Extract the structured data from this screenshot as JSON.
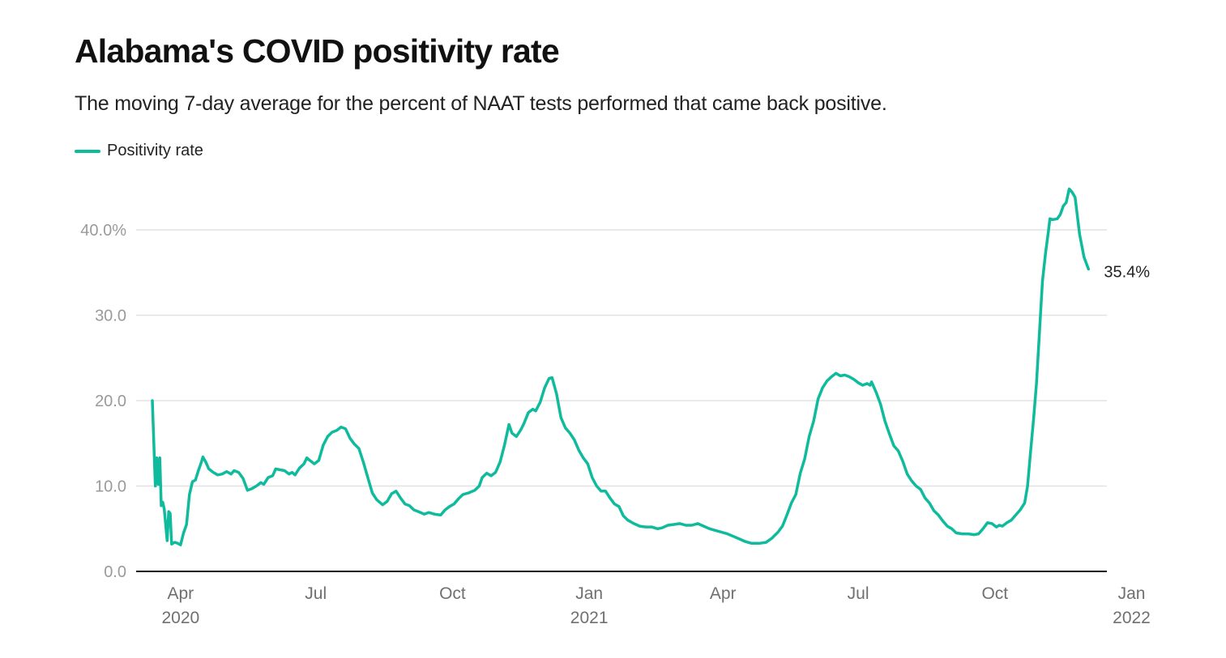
{
  "header": {
    "title": "Alabama's COVID positivity rate",
    "subtitle": "The moving 7-day average for the percent of NAAT tests performed that came back positive."
  },
  "chart_data": {
    "type": "line",
    "title": "Alabama's COVID positivity rate",
    "subtitle": "The moving 7-day average for the percent of NAAT tests performed that came back positive.",
    "xlabel": "",
    "ylabel": "",
    "ylim": [
      0,
      45
    ],
    "grid": true,
    "legend_position": "top-left",
    "colors": {
      "series": "#0fbb9c",
      "grid": "#e2e2e2",
      "axis": "#111111"
    },
    "y_ticks": [
      {
        "value": 0,
        "label": "0.0"
      },
      {
        "value": 10,
        "label": "10.0"
      },
      {
        "value": 20,
        "label": "20.0"
      },
      {
        "value": 30,
        "label": "30.0"
      },
      {
        "value": 40,
        "label": "40.0%"
      }
    ],
    "x_range": [
      "2020-03-13",
      "2022-02-08"
    ],
    "x_ticks": [
      {
        "date": "2020-04-01",
        "label": "Apr",
        "sublabel": "2020"
      },
      {
        "date": "2020-07-01",
        "label": "Jul",
        "sublabel": ""
      },
      {
        "date": "2020-10-01",
        "label": "Oct",
        "sublabel": ""
      },
      {
        "date": "2021-01-01",
        "label": "Jan",
        "sublabel": "2021"
      },
      {
        "date": "2021-04-01",
        "label": "Apr",
        "sublabel": ""
      },
      {
        "date": "2021-07-01",
        "label": "Jul",
        "sublabel": ""
      },
      {
        "date": "2021-10-01",
        "label": "Oct",
        "sublabel": ""
      },
      {
        "date": "2022-01-01",
        "label": "Jan",
        "sublabel": "2022"
      }
    ],
    "end_label": "35.4%",
    "series": [
      {
        "name": "Positivity rate",
        "points": [
          [
            "2020-03-13",
            20.0
          ],
          [
            "2020-03-15",
            10.0
          ],
          [
            "2020-03-16",
            13.3
          ],
          [
            "2020-03-17",
            10.2
          ],
          [
            "2020-03-18",
            13.3
          ],
          [
            "2020-03-19",
            7.7
          ],
          [
            "2020-03-20",
            8.1
          ],
          [
            "2020-03-21",
            7.3
          ],
          [
            "2020-03-23",
            3.6
          ],
          [
            "2020-03-24",
            7.0
          ],
          [
            "2020-03-25",
            6.8
          ],
          [
            "2020-03-26",
            3.2
          ],
          [
            "2020-03-28",
            3.4
          ],
          [
            "2020-03-30",
            3.3
          ],
          [
            "2020-04-01",
            3.1
          ],
          [
            "2020-04-03",
            4.5
          ],
          [
            "2020-04-05",
            5.5
          ],
          [
            "2020-04-07",
            9.0
          ],
          [
            "2020-04-09",
            10.5
          ],
          [
            "2020-04-11",
            10.7
          ],
          [
            "2020-04-13",
            11.8
          ],
          [
            "2020-04-15",
            12.8
          ],
          [
            "2020-04-16",
            13.4
          ],
          [
            "2020-04-18",
            12.8
          ],
          [
            "2020-04-20",
            12.0
          ],
          [
            "2020-04-23",
            11.6
          ],
          [
            "2020-04-26",
            11.3
          ],
          [
            "2020-04-29",
            11.4
          ],
          [
            "2020-05-02",
            11.7
          ],
          [
            "2020-05-05",
            11.4
          ],
          [
            "2020-05-07",
            11.8
          ],
          [
            "2020-05-10",
            11.6
          ],
          [
            "2020-05-13",
            10.9
          ],
          [
            "2020-05-16",
            9.5
          ],
          [
            "2020-05-19",
            9.7
          ],
          [
            "2020-05-22",
            10.0
          ],
          [
            "2020-05-25",
            10.4
          ],
          [
            "2020-05-27",
            10.2
          ],
          [
            "2020-05-30",
            11.0
          ],
          [
            "2020-06-02",
            11.2
          ],
          [
            "2020-06-04",
            12.0
          ],
          [
            "2020-06-07",
            11.9
          ],
          [
            "2020-06-10",
            11.8
          ],
          [
            "2020-06-13",
            11.4
          ],
          [
            "2020-06-15",
            11.6
          ],
          [
            "2020-06-17",
            11.3
          ],
          [
            "2020-06-20",
            12.1
          ],
          [
            "2020-06-23",
            12.6
          ],
          [
            "2020-06-25",
            13.3
          ],
          [
            "2020-06-27",
            13.0
          ],
          [
            "2020-06-30",
            12.6
          ],
          [
            "2020-07-03",
            13.0
          ],
          [
            "2020-07-06",
            14.8
          ],
          [
            "2020-07-09",
            15.8
          ],
          [
            "2020-07-12",
            16.3
          ],
          [
            "2020-07-15",
            16.5
          ],
          [
            "2020-07-18",
            16.9
          ],
          [
            "2020-07-21",
            16.7
          ],
          [
            "2020-07-24",
            15.6
          ],
          [
            "2020-07-27",
            14.9
          ],
          [
            "2020-07-30",
            14.4
          ],
          [
            "2020-08-02",
            12.8
          ],
          [
            "2020-08-05",
            11.0
          ],
          [
            "2020-08-08",
            9.2
          ],
          [
            "2020-08-11",
            8.4
          ],
          [
            "2020-08-15",
            7.8
          ],
          [
            "2020-08-18",
            8.2
          ],
          [
            "2020-08-21",
            9.1
          ],
          [
            "2020-08-24",
            9.4
          ],
          [
            "2020-08-27",
            8.6
          ],
          [
            "2020-08-30",
            7.9
          ],
          [
            "2020-09-02",
            7.7
          ],
          [
            "2020-09-05",
            7.2
          ],
          [
            "2020-09-08",
            7.0
          ],
          [
            "2020-09-12",
            6.7
          ],
          [
            "2020-09-15",
            6.9
          ],
          [
            "2020-09-19",
            6.7
          ],
          [
            "2020-09-23",
            6.6
          ],
          [
            "2020-09-26",
            7.2
          ],
          [
            "2020-09-29",
            7.6
          ],
          [
            "2020-10-02",
            7.9
          ],
          [
            "2020-10-05",
            8.5
          ],
          [
            "2020-10-08",
            9.0
          ],
          [
            "2020-10-12",
            9.2
          ],
          [
            "2020-10-16",
            9.5
          ],
          [
            "2020-10-19",
            10.0
          ],
          [
            "2020-10-21",
            11.0
          ],
          [
            "2020-10-24",
            11.5
          ],
          [
            "2020-10-27",
            11.2
          ],
          [
            "2020-10-30",
            11.6
          ],
          [
            "2020-11-02",
            12.8
          ],
          [
            "2020-11-05",
            14.8
          ],
          [
            "2020-11-08",
            17.2
          ],
          [
            "2020-11-10",
            16.2
          ],
          [
            "2020-11-13",
            15.8
          ],
          [
            "2020-11-16",
            16.6
          ],
          [
            "2020-11-18",
            17.3
          ],
          [
            "2020-11-21",
            18.6
          ],
          [
            "2020-11-24",
            19.0
          ],
          [
            "2020-11-26",
            18.8
          ],
          [
            "2020-11-29",
            19.8
          ],
          [
            "2020-12-02",
            21.5
          ],
          [
            "2020-12-05",
            22.6
          ],
          [
            "2020-12-07",
            22.7
          ],
          [
            "2020-12-10",
            20.8
          ],
          [
            "2020-12-13",
            18.0
          ],
          [
            "2020-12-16",
            16.8
          ],
          [
            "2020-12-19",
            16.2
          ],
          [
            "2020-12-22",
            15.4
          ],
          [
            "2020-12-25",
            14.2
          ],
          [
            "2020-12-28",
            13.3
          ],
          [
            "2020-12-31",
            12.6
          ],
          [
            "2021-01-03",
            11.0
          ],
          [
            "2021-01-06",
            10.0
          ],
          [
            "2021-01-09",
            9.4
          ],
          [
            "2021-01-12",
            9.4
          ],
          [
            "2021-01-15",
            8.6
          ],
          [
            "2021-01-18",
            7.9
          ],
          [
            "2021-01-21",
            7.6
          ],
          [
            "2021-01-24",
            6.5
          ],
          [
            "2021-01-27",
            6.0
          ],
          [
            "2021-01-31",
            5.6
          ],
          [
            "2021-02-04",
            5.3
          ],
          [
            "2021-02-08",
            5.2
          ],
          [
            "2021-02-12",
            5.2
          ],
          [
            "2021-02-16",
            5.0
          ],
          [
            "2021-02-19",
            5.1
          ],
          [
            "2021-02-23",
            5.4
          ],
          [
            "2021-02-27",
            5.5
          ],
          [
            "2021-03-03",
            5.6
          ],
          [
            "2021-03-07",
            5.4
          ],
          [
            "2021-03-11",
            5.4
          ],
          [
            "2021-03-15",
            5.6
          ],
          [
            "2021-03-19",
            5.3
          ],
          [
            "2021-03-23",
            5.0
          ],
          [
            "2021-03-27",
            4.8
          ],
          [
            "2021-03-31",
            4.6
          ],
          [
            "2021-04-04",
            4.4
          ],
          [
            "2021-04-08",
            4.1
          ],
          [
            "2021-04-12",
            3.8
          ],
          [
            "2021-04-16",
            3.5
          ],
          [
            "2021-04-20",
            3.3
          ],
          [
            "2021-04-23",
            3.3
          ],
          [
            "2021-04-26",
            3.3
          ],
          [
            "2021-04-30",
            3.4
          ],
          [
            "2021-05-04",
            3.9
          ],
          [
            "2021-05-08",
            4.6
          ],
          [
            "2021-05-11",
            5.3
          ],
          [
            "2021-05-14",
            6.6
          ],
          [
            "2021-05-17",
            8.0
          ],
          [
            "2021-05-20",
            9.0
          ],
          [
            "2021-05-23",
            11.5
          ],
          [
            "2021-05-26",
            13.2
          ],
          [
            "2021-05-29",
            15.8
          ],
          [
            "2021-06-01",
            17.6
          ],
          [
            "2021-06-04",
            20.2
          ],
          [
            "2021-06-07",
            21.5
          ],
          [
            "2021-06-10",
            22.3
          ],
          [
            "2021-06-13",
            22.8
          ],
          [
            "2021-06-16",
            23.2
          ],
          [
            "2021-06-19",
            22.9
          ],
          [
            "2021-06-22",
            23.0
          ],
          [
            "2021-06-25",
            22.8
          ],
          [
            "2021-06-28",
            22.5
          ],
          [
            "2021-07-01",
            22.1
          ],
          [
            "2021-07-04",
            21.8
          ],
          [
            "2021-07-07",
            22.0
          ],
          [
            "2021-07-09",
            21.8
          ],
          [
            "2021-07-10",
            22.2
          ],
          [
            "2021-07-13",
            21.0
          ],
          [
            "2021-07-16",
            19.6
          ],
          [
            "2021-07-19",
            17.6
          ],
          [
            "2021-07-22",
            16.1
          ],
          [
            "2021-07-25",
            14.7
          ],
          [
            "2021-07-28",
            14.1
          ],
          [
            "2021-07-31",
            12.9
          ],
          [
            "2021-08-03",
            11.4
          ],
          [
            "2021-08-06",
            10.6
          ],
          [
            "2021-08-09",
            10.0
          ],
          [
            "2021-08-12",
            9.6
          ],
          [
            "2021-08-15",
            8.6
          ],
          [
            "2021-08-18",
            8.0
          ],
          [
            "2021-08-21",
            7.1
          ],
          [
            "2021-08-24",
            6.6
          ],
          [
            "2021-08-27",
            5.9
          ],
          [
            "2021-08-30",
            5.3
          ],
          [
            "2021-09-02",
            5.0
          ],
          [
            "2021-09-05",
            4.5
          ],
          [
            "2021-09-09",
            4.4
          ],
          [
            "2021-09-13",
            4.4
          ],
          [
            "2021-09-17",
            4.3
          ],
          [
            "2021-09-20",
            4.4
          ],
          [
            "2021-09-23",
            5.0
          ],
          [
            "2021-09-26",
            5.7
          ],
          [
            "2021-09-29",
            5.6
          ],
          [
            "2021-10-02",
            5.2
          ],
          [
            "2021-10-04",
            5.4
          ],
          [
            "2021-10-06",
            5.3
          ],
          [
            "2021-10-09",
            5.7
          ],
          [
            "2021-10-12",
            6.0
          ],
          [
            "2021-10-15",
            6.6
          ],
          [
            "2021-10-18",
            7.2
          ],
          [
            "2021-10-21",
            8.0
          ],
          [
            "2021-10-23",
            10.0
          ],
          [
            "2021-10-25",
            14.0
          ],
          [
            "2021-10-27",
            17.8
          ],
          [
            "2021-10-29",
            22.0
          ],
          [
            "2021-10-31",
            28.0
          ],
          [
            "2021-11-02",
            34.0
          ],
          [
            "2021-11-04",
            37.2
          ],
          [
            "2021-11-06",
            39.8
          ],
          [
            "2021-11-07",
            41.3
          ],
          [
            "2021-11-09",
            41.2
          ],
          [
            "2021-11-12",
            41.3
          ],
          [
            "2021-11-14",
            41.8
          ],
          [
            "2021-11-16",
            42.8
          ],
          [
            "2021-11-18",
            43.2
          ],
          [
            "2021-11-20",
            44.8
          ],
          [
            "2021-11-22",
            44.4
          ],
          [
            "2021-11-24",
            43.8
          ],
          [
            "2021-11-27",
            39.5
          ],
          [
            "2021-11-30",
            36.8
          ],
          [
            "2021-12-03",
            35.4
          ]
        ]
      }
    ]
  }
}
